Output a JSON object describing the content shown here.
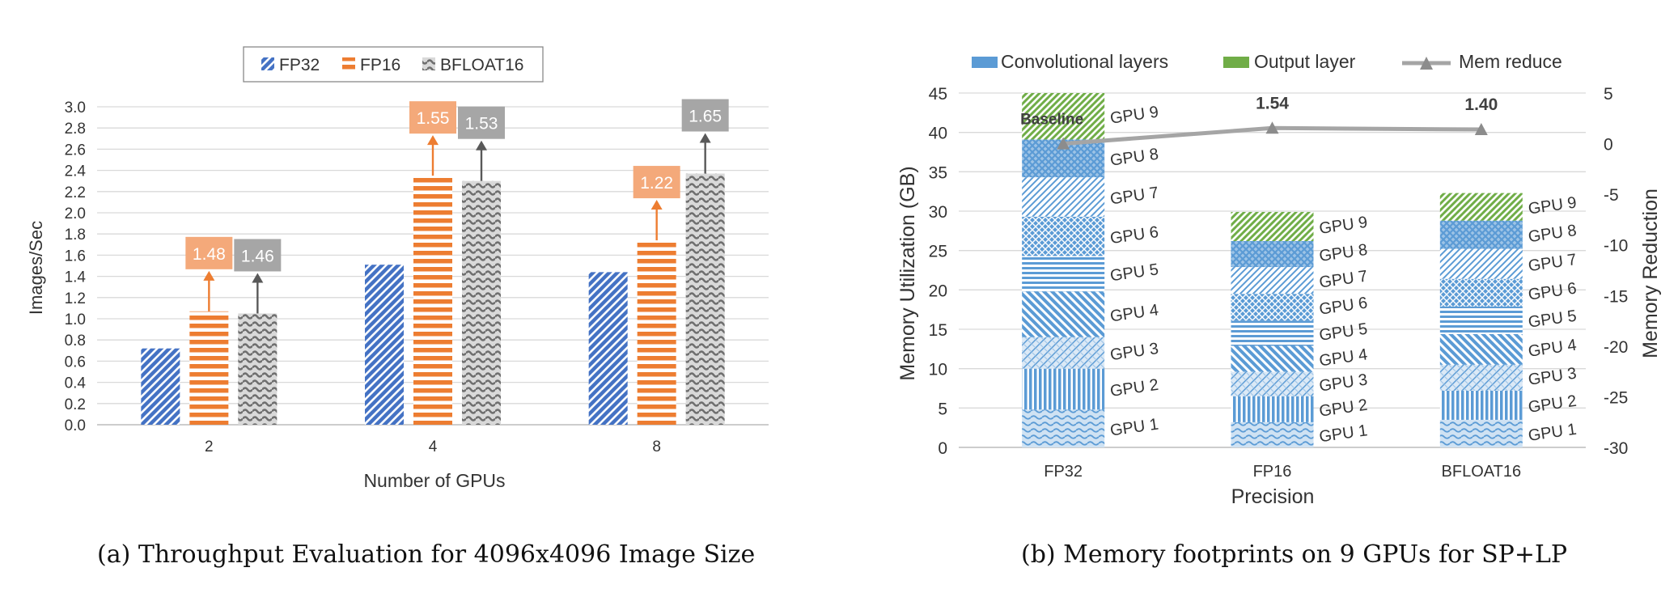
{
  "chart_data": [
    {
      "type": "bar",
      "xlabel": "Number of GPUs",
      "ylabel": "Images/Sec",
      "categories": [
        "2",
        "4",
        "8"
      ],
      "ylim": [
        0,
        3.0
      ],
      "yticks": [
        "0.0",
        "0.2",
        "0.4",
        "0.6",
        "0.8",
        "1.0",
        "1.2",
        "1.4",
        "1.6",
        "1.8",
        "2.0",
        "2.2",
        "2.4",
        "2.6",
        "2.8",
        "3.0"
      ],
      "grid": true,
      "legend_position": "top-center",
      "series": [
        {
          "name": "FP32",
          "values": [
            0.72,
            1.51,
            1.44
          ],
          "color": "#4472c4",
          "pattern": "diagonal"
        },
        {
          "name": "FP16",
          "values": [
            1.07,
            2.35,
            1.74
          ],
          "color": "#ed7d31",
          "pattern": "horizontal"
        },
        {
          "name": "BFLOAT16",
          "values": [
            1.05,
            2.3,
            2.37
          ],
          "color": "#7f7f7f",
          "pattern": "wave"
        }
      ],
      "speedup_labels": [
        {
          "category": "2",
          "series": "FP16",
          "text": "1.48"
        },
        {
          "category": "2",
          "series": "BFLOAT16",
          "text": "1.46"
        },
        {
          "category": "4",
          "series": "FP16",
          "text": "1.55"
        },
        {
          "category": "4",
          "series": "BFLOAT16",
          "text": "1.53"
        },
        {
          "category": "8",
          "series": "FP16",
          "text": "1.22"
        },
        {
          "category": "8",
          "series": "BFLOAT16",
          "text": "1.65"
        }
      ]
    },
    {
      "type": "bar",
      "stacked": true,
      "xlabel": "Precision",
      "ylabel": "Memory Utilization (GB)",
      "y2label": "Memory Reduction",
      "categories": [
        "FP32",
        "FP16",
        "BFLOAT16"
      ],
      "ylim": [
        0,
        45
      ],
      "yticks": [
        "0",
        "5",
        "10",
        "15",
        "20",
        "25",
        "30",
        "35",
        "40",
        "45"
      ],
      "y2lim": [
        -30,
        5
      ],
      "y2ticks": [
        "-30",
        "-25",
        "-20",
        "-15",
        "-10",
        "-5",
        "0",
        "5"
      ],
      "grid": true,
      "legend_position": "top",
      "legend": [
        "Convolutional layers",
        "Output layer",
        "Mem reduce"
      ],
      "conv_color": "#5b9bd5",
      "output_color": "#70ad47",
      "line_color": "#a5a5a5",
      "segment_labels": [
        "GPU 1",
        "GPU 2",
        "GPU 3",
        "GPU 4",
        "GPU 5",
        "GPU 6",
        "GPU 7",
        "GPU 8",
        "GPU 9"
      ],
      "segments": {
        "FP32": [
          4.8,
          5.2,
          4.0,
          5.8,
          4.5,
          5.0,
          5.0,
          4.8,
          5.9
        ],
        "FP16": [
          3.2,
          3.3,
          3.1,
          3.3,
          3.2,
          3.4,
          3.4,
          3.3,
          3.7
        ],
        "BFLOAT16": [
          3.5,
          3.7,
          3.3,
          3.9,
          3.5,
          3.5,
          3.8,
          3.6,
          3.5
        ]
      },
      "mem_reduce": [
        0,
        1.54,
        1.4
      ],
      "mem_reduce_labels": [
        "Baseline",
        "1.54",
        "1.40"
      ]
    }
  ],
  "captions": {
    "a": "(a) Throughput Evaluation for 4096x4096 Image Size",
    "b": "(b) Memory footprints on 9 GPUs for SP+LP"
  }
}
